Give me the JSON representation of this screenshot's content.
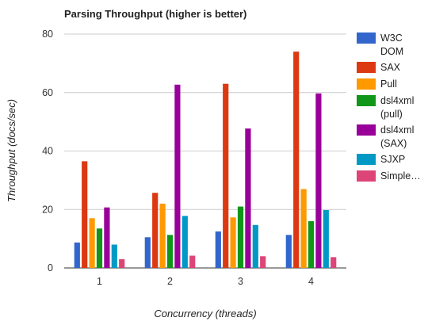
{
  "chart_data": {
    "type": "bar",
    "title": "Parsing Throughput (higher is better)",
    "xlabel": "Concurrency (threads)",
    "ylabel": "Throughput (docs/sec)",
    "categories": [
      "1",
      "2",
      "3",
      "4"
    ],
    "ylim": [
      0,
      80
    ],
    "yticks": [
      "0",
      "20",
      "40",
      "60",
      "80"
    ],
    "grid": true,
    "legend_position": "right",
    "series": [
      {
        "name": "W3C DOM",
        "legend_lines": [
          "W3C",
          "DOM"
        ],
        "color": "#3366cc",
        "values": [
          8.7,
          10.5,
          12.5,
          11.3
        ]
      },
      {
        "name": "SAX",
        "legend_lines": [
          "SAX"
        ],
        "color": "#dc3912",
        "values": [
          36.5,
          25.7,
          63.0,
          74.0
        ]
      },
      {
        "name": "Pull",
        "legend_lines": [
          "Pull"
        ],
        "color": "#ff9900",
        "values": [
          17.0,
          22.0,
          17.3,
          27.0
        ]
      },
      {
        "name": "dsl4xml (pull)",
        "legend_lines": [
          "dsl4xml",
          "(pull)"
        ],
        "color": "#109618",
        "values": [
          13.5,
          11.3,
          21.0,
          16.0
        ]
      },
      {
        "name": "dsl4xml (SAX)",
        "legend_lines": [
          "dsl4xml",
          "(SAX)"
        ],
        "color": "#990099",
        "values": [
          20.7,
          62.7,
          47.7,
          59.7
        ]
      },
      {
        "name": "SJXP",
        "legend_lines": [
          "SJXP"
        ],
        "color": "#0099c6",
        "values": [
          8.0,
          17.8,
          14.7,
          19.8
        ]
      },
      {
        "name": "Simple…",
        "legend_lines": [
          "Simple…"
        ],
        "color": "#dd4477",
        "values": [
          3.0,
          4.2,
          4.0,
          3.7
        ]
      }
    ]
  }
}
